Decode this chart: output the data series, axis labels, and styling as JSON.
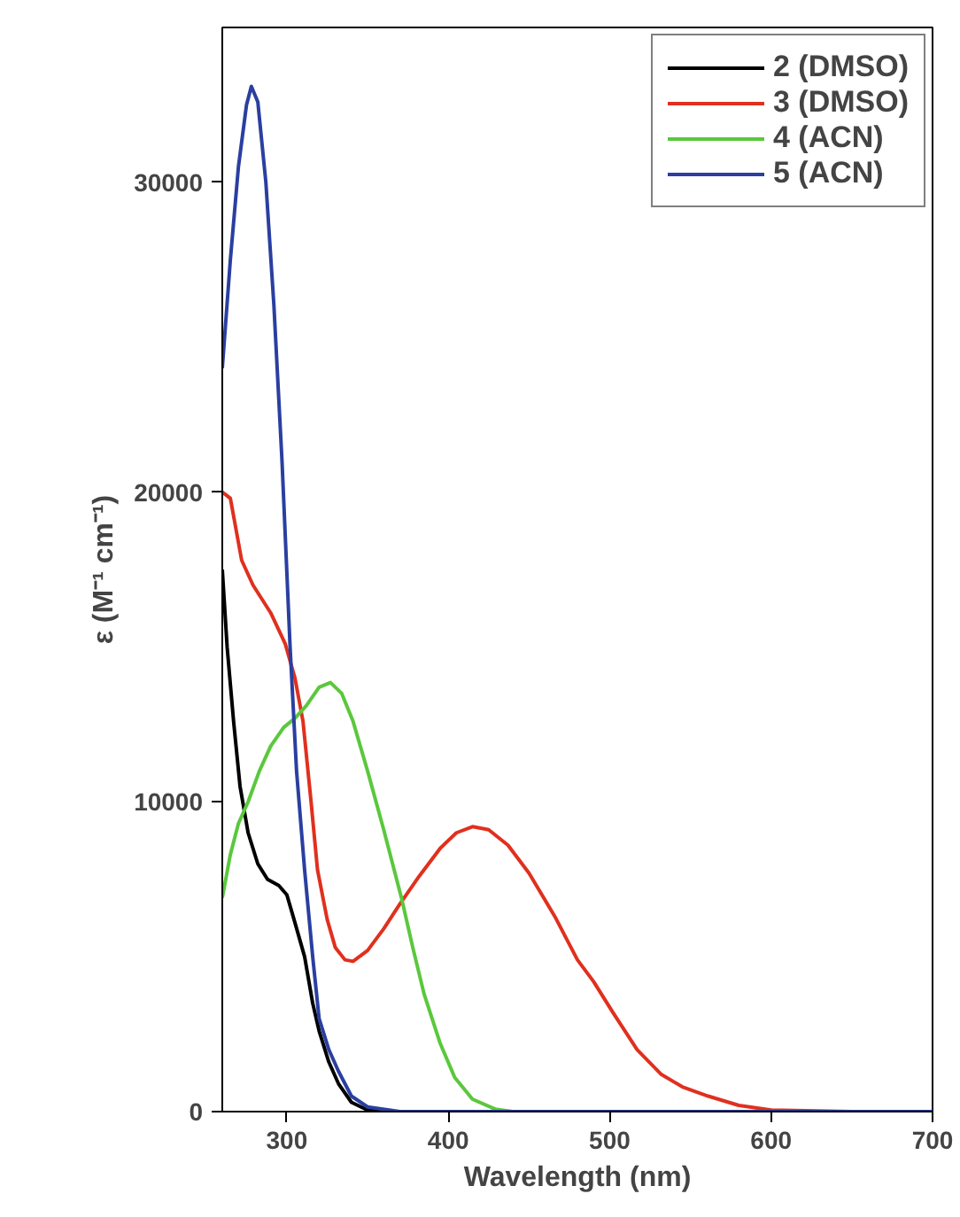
{
  "chart_data": {
    "type": "line",
    "xlabel": "Wavelength (nm)",
    "ylabel": "ε (M⁻¹ cm⁻¹)",
    "xlim": [
      260,
      700
    ],
    "ylim": [
      0,
      35000
    ],
    "xticks": [
      300,
      400,
      500,
      600,
      700
    ],
    "yticks": [
      0,
      10000,
      20000,
      30000
    ],
    "grid": false,
    "legend": "top right",
    "line_style": "solid",
    "marker": "none",
    "series": [
      {
        "name": "2 (DMSO)",
        "color": "#000000",
        "x": [
          260,
          263,
          267,
          271,
          276,
          282,
          288,
          295,
          300,
          305,
          311,
          316,
          320,
          326,
          332,
          340,
          350,
          360,
          700
        ],
        "values": [
          17500,
          15000,
          12600,
          10500,
          9000,
          8000,
          7500,
          7300,
          7000,
          6100,
          5000,
          3500,
          2600,
          1600,
          900,
          300,
          50,
          0,
          0
        ]
      },
      {
        "name": "3 (DMSO)",
        "color": "#e0301e",
        "x": [
          260,
          265,
          272,
          279,
          290,
          299,
          305,
          310,
          315,
          319,
          325,
          330,
          336,
          341,
          350,
          360,
          370,
          382,
          395,
          405,
          415,
          425,
          437,
          450,
          466,
          480,
          490,
          502,
          517,
          532,
          545,
          561,
          580,
          600,
          650,
          700
        ],
        "values": [
          20000,
          19800,
          17800,
          17000,
          16100,
          15100,
          14000,
          12600,
          10000,
          7800,
          6200,
          5300,
          4900,
          4850,
          5200,
          5900,
          6700,
          7600,
          8500,
          9000,
          9200,
          9100,
          8600,
          7700,
          6300,
          4900,
          4200,
          3200,
          2000,
          1200,
          800,
          500,
          200,
          50,
          0,
          0
        ]
      },
      {
        "name": "4 (ACN)",
        "color": "#5ac83c",
        "x": [
          260,
          265,
          270,
          276,
          283,
          290,
          298,
          305,
          312,
          320,
          327,
          334,
          341,
          350,
          360,
          371,
          378,
          385,
          395,
          404,
          415,
          429,
          440,
          700
        ],
        "values": [
          6900,
          8300,
          9300,
          10000,
          11000,
          11800,
          12400,
          12700,
          13100,
          13700,
          13850,
          13500,
          12600,
          11000,
          9100,
          6900,
          5300,
          3800,
          2200,
          1100,
          400,
          80,
          0,
          0
        ]
      },
      {
        "name": "5 (ACN)",
        "color": "#2a3fa0",
        "x": [
          260,
          265,
          270,
          275,
          278,
          282,
          287,
          292,
          297,
          302,
          306,
          311,
          316,
          320,
          326,
          332,
          340,
          350,
          370,
          700
        ],
        "values": [
          24000,
          27500,
          30500,
          32500,
          33100,
          32600,
          30000,
          26000,
          21000,
          15000,
          11000,
          7800,
          5000,
          3000,
          2000,
          1300,
          500,
          150,
          0,
          0
        ]
      }
    ]
  }
}
